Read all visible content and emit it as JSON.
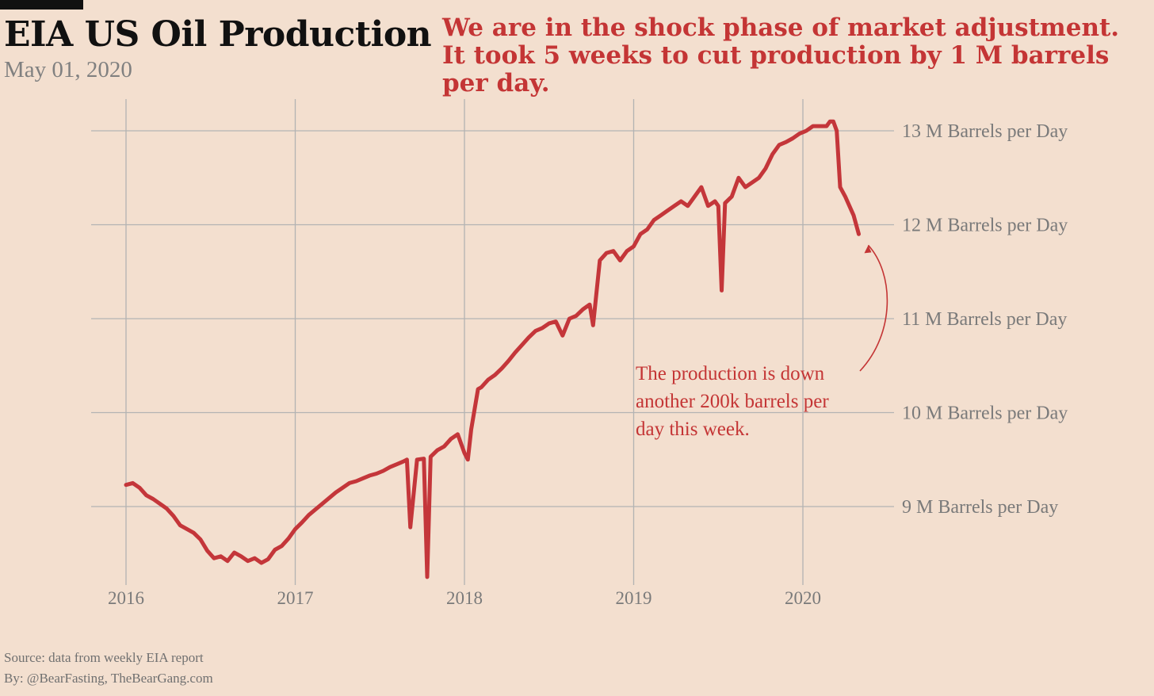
{
  "header": {
    "title": "EIA US Oil Production",
    "date": "May 01, 2020",
    "headline": "We are in the shock phase of market adjustment. It took 5 weeks to cut production by 1 M barrels per day."
  },
  "footer": {
    "source": "Source: data from  weekly EIA report",
    "byline": "By: @BearFasting, TheBearGang.com"
  },
  "colors": {
    "background": "#f3dfcf",
    "line": "#c4363a",
    "grid": "#b3b3b3",
    "accent_text": "#c43535"
  },
  "chart_data": {
    "type": "line",
    "title": "EIA US Oil Production",
    "xlabel": "",
    "ylabel": "",
    "x_range": [
      2015.9,
      2020.5
    ],
    "y_range": [
      8.15,
      13.35
    ],
    "y_ticks": [
      9,
      10,
      11,
      12,
      13
    ],
    "y_tick_labels": [
      "9 M Barrels per Day",
      "10 M Barrels per Day",
      "11 M Barrels per Day",
      "12 M Barrels per Day",
      "13 M Barrels per Day"
    ],
    "y_axis_side": "right",
    "x_ticks": [
      2016,
      2017,
      2018,
      2019,
      2020
    ],
    "x_tick_labels": [
      "2016",
      "2017",
      "2018",
      "2019",
      "2020"
    ],
    "grid": true,
    "series": [
      {
        "x": [
          2016.0,
          2016.04,
          2016.08,
          2016.12,
          2016.16,
          2016.2,
          2016.24,
          2016.28,
          2016.32,
          2016.36,
          2016.4,
          2016.44,
          2016.48,
          2016.52,
          2016.56,
          2016.6,
          2016.64,
          2016.68,
          2016.72,
          2016.76,
          2016.8,
          2016.84,
          2016.88,
          2016.92,
          2016.96,
          2017.0,
          2017.04,
          2017.08,
          2017.12,
          2017.16,
          2017.2,
          2017.24,
          2017.28,
          2017.32,
          2017.36,
          2017.4,
          2017.44,
          2017.48,
          2017.52,
          2017.56,
          2017.6,
          2017.64,
          2017.66,
          2017.68,
          2017.72,
          2017.76,
          2017.78,
          2017.8,
          2017.84,
          2017.88,
          2017.92,
          2017.96,
          2018.0,
          2018.02,
          2018.04,
          2018.08,
          2018.1,
          2018.14,
          2018.18,
          2018.22,
          2018.26,
          2018.3,
          2018.34,
          2018.38,
          2018.42,
          2018.46,
          2018.5,
          2018.54,
          2018.58,
          2018.62,
          2018.66,
          2018.7,
          2018.74,
          2018.76,
          2018.8,
          2018.84,
          2018.88,
          2018.92,
          2018.96,
          2019.0,
          2019.04,
          2019.08,
          2019.12,
          2019.16,
          2019.2,
          2019.24,
          2019.28,
          2019.32,
          2019.36,
          2019.4,
          2019.44,
          2019.48,
          2019.5,
          2019.52,
          2019.54,
          2019.58,
          2019.62,
          2019.66,
          2019.7,
          2019.74,
          2019.78,
          2019.82,
          2019.86,
          2019.9,
          2019.94,
          2019.98,
          2020.02,
          2020.06,
          2020.1,
          2020.14,
          2020.16,
          2020.18,
          2020.2,
          2020.22,
          2020.25,
          2020.3,
          2020.33
        ],
        "y": [
          9.23,
          9.25,
          9.2,
          9.12,
          9.08,
          9.03,
          8.98,
          8.9,
          8.8,
          8.76,
          8.72,
          8.65,
          8.53,
          8.45,
          8.47,
          8.42,
          8.51,
          8.47,
          8.42,
          8.45,
          8.4,
          8.44,
          8.54,
          8.58,
          8.66,
          8.76,
          8.83,
          8.91,
          8.97,
          9.03,
          9.09,
          9.15,
          9.2,
          9.25,
          9.27,
          9.3,
          9.33,
          9.35,
          9.38,
          9.42,
          9.45,
          9.48,
          9.5,
          8.78,
          9.5,
          9.51,
          8.25,
          9.53,
          9.6,
          9.64,
          9.72,
          9.77,
          9.57,
          9.5,
          9.82,
          10.25,
          10.27,
          10.35,
          10.4,
          10.47,
          10.55,
          10.64,
          10.72,
          10.8,
          10.87,
          10.9,
          10.95,
          10.97,
          10.82,
          11.0,
          11.03,
          11.1,
          11.15,
          10.93,
          11.62,
          11.7,
          11.72,
          11.62,
          11.72,
          11.77,
          11.9,
          11.95,
          12.05,
          12.1,
          12.15,
          12.2,
          12.25,
          12.2,
          12.3,
          12.4,
          12.2,
          12.25,
          12.2,
          11.3,
          12.23,
          12.3,
          12.5,
          12.4,
          12.45,
          12.5,
          12.6,
          12.75,
          12.85,
          12.88,
          12.92,
          12.97,
          13.0,
          13.05,
          13.05,
          13.05,
          13.1,
          13.1,
          13.0,
          12.4,
          12.3,
          12.1,
          11.9
        ]
      }
    ],
    "annotation": {
      "text_lines": [
        "The production is down",
        "another 200k barrels per",
        "day this week."
      ],
      "target": [
        2020.33,
        11.9
      ]
    }
  }
}
